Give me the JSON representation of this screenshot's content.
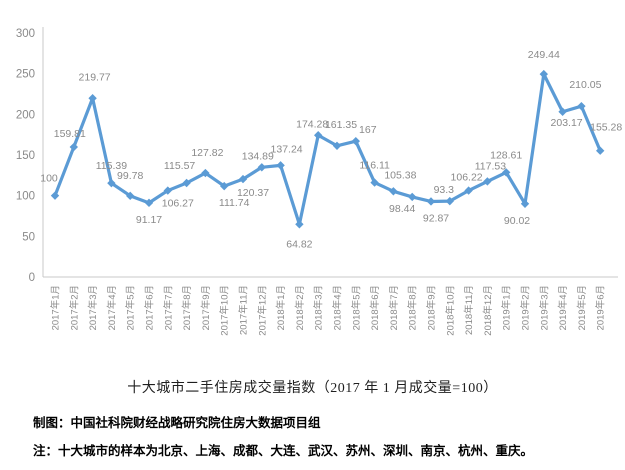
{
  "chart_data": {
    "type": "line",
    "title": "十大城市二手住房成交量指数（2017 年 1 月成交量=100）",
    "categories": [
      "2017年1月",
      "2017年2月",
      "2017年3月",
      "2017年4月",
      "2017年5月",
      "2017年6月",
      "2017年7月",
      "2017年8月",
      "2017年9月",
      "2017年10月",
      "2017年11月",
      "2017年12月",
      "2018年1月",
      "2018年2月",
      "2018年3月",
      "2018年4月",
      "2018年5月",
      "2018年6月",
      "2018年7月",
      "2018年8月",
      "2018年9月",
      "2018年10月",
      "2018年11月",
      "2018年12月",
      "2019年1月",
      "2019年2月",
      "2019年3月",
      "2019年4月",
      "2019年5月",
      "2019年6月"
    ],
    "series": [
      {
        "name": "十大城市二手住房成交量指数",
        "values": [
          100,
          159.81,
          219.77,
          115.39,
          99.78,
          91.17,
          106.27,
          115.57,
          127.82,
          111.74,
          120.37,
          134.89,
          137.24,
          64.82,
          174.28,
          161.35,
          167,
          116.11,
          105.38,
          98.44,
          92.87,
          93.3,
          106.22,
          117.53,
          128.61,
          90.02,
          249.44,
          203.17,
          210.05,
          155.28
        ]
      }
    ],
    "data_labels_visible": true,
    "xlabel": "",
    "ylabel": "",
    "ylim": [
      0,
      300
    ],
    "yticks": [
      0,
      50,
      100,
      150,
      200,
      250,
      300
    ],
    "grid": false,
    "legend_position": "none",
    "marker": "diamond",
    "colors": {
      "line": "#5B9BD5",
      "marker": "#5B9BD5",
      "data_label": "#8a8a8a",
      "axis_line": "#c9c9c9",
      "tick_label": "#8a8a8a"
    },
    "label_layout": {
      "side": [
        "a",
        "a",
        "a",
        "a",
        "a",
        "b",
        "b",
        "a",
        "a",
        "b",
        "b",
        "a",
        "a",
        "b",
        "a",
        "a",
        "a",
        "a",
        "a",
        "b",
        "b",
        "a",
        "a",
        "a",
        "a",
        "b",
        "a",
        "b",
        "a",
        "a"
      ],
      "dx": [
        -6,
        -4,
        2,
        0,
        0,
        0,
        10,
        -7,
        2,
        10,
        10,
        -4,
        6,
        0,
        -6,
        4,
        12,
        0,
        7,
        -10,
        5,
        -6,
        -2,
        3,
        0,
        -8,
        0,
        4,
        4,
        6
      ],
      "dy": [
        -6,
        -2,
        -10,
        -6,
        -9,
        0,
        -4,
        -6,
        -9,
        0,
        -3,
        0,
        -5,
        3,
        0,
        -10,
        0,
        -6,
        -5,
        -5,
        0,
        0,
        -2,
        -4,
        -6,
        0,
        -8,
        -6,
        -10,
        -12
      ]
    }
  },
  "footer": {
    "credit": "制图：中国社科院财经战略研究院住房大数据项目组",
    "note": "注：十大城市的样本为北京、上海、成都、大连、武汉、苏州、深圳、南京、杭州、重庆。"
  }
}
